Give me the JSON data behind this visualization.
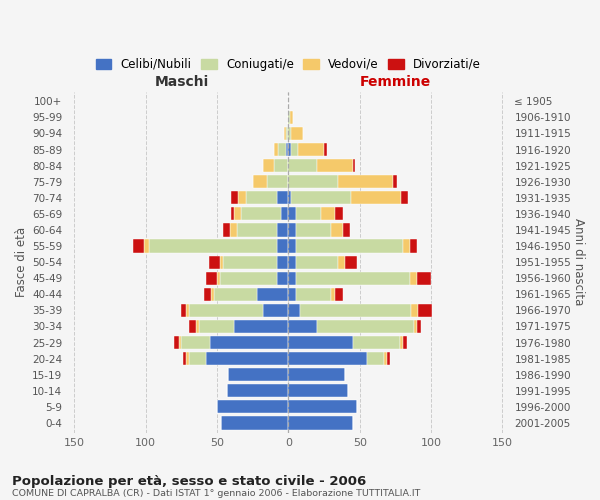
{
  "age_groups": [
    "0-4",
    "5-9",
    "10-14",
    "15-19",
    "20-24",
    "25-29",
    "30-34",
    "35-39",
    "40-44",
    "45-49",
    "50-54",
    "55-59",
    "60-64",
    "65-69",
    "70-74",
    "75-79",
    "80-84",
    "85-89",
    "90-94",
    "95-99",
    "100+"
  ],
  "birth_years": [
    "2001-2005",
    "1996-2000",
    "1991-1995",
    "1986-1990",
    "1981-1985",
    "1976-1980",
    "1971-1975",
    "1966-1970",
    "1961-1965",
    "1956-1960",
    "1951-1955",
    "1946-1950",
    "1941-1945",
    "1936-1940",
    "1931-1935",
    "1926-1930",
    "1921-1925",
    "1916-1920",
    "1911-1915",
    "1906-1910",
    "≤ 1905"
  ],
  "males_celibe": [
    47,
    50,
    43,
    42,
    58,
    55,
    38,
    18,
    22,
    8,
    8,
    8,
    8,
    5,
    8,
    0,
    0,
    2,
    0,
    0,
    0
  ],
  "males_coniugato": [
    0,
    0,
    0,
    0,
    12,
    20,
    25,
    52,
    30,
    40,
    38,
    90,
    28,
    28,
    22,
    15,
    10,
    5,
    2,
    0,
    0
  ],
  "males_vedovo": [
    0,
    0,
    0,
    0,
    2,
    2,
    2,
    2,
    2,
    2,
    2,
    3,
    5,
    5,
    5,
    10,
    8,
    3,
    1,
    0,
    0
  ],
  "males_divorziato": [
    0,
    0,
    0,
    0,
    2,
    3,
    5,
    3,
    5,
    8,
    8,
    8,
    5,
    2,
    5,
    0,
    0,
    0,
    0,
    0,
    0
  ],
  "females_nubile": [
    45,
    48,
    42,
    40,
    55,
    45,
    20,
    8,
    5,
    5,
    5,
    5,
    5,
    5,
    2,
    0,
    0,
    2,
    0,
    0,
    0
  ],
  "females_coniugata": [
    0,
    0,
    0,
    0,
    12,
    33,
    68,
    78,
    25,
    80,
    30,
    75,
    25,
    18,
    42,
    35,
    20,
    5,
    2,
    1,
    0
  ],
  "females_vedova": [
    0,
    0,
    0,
    0,
    2,
    2,
    2,
    5,
    3,
    5,
    5,
    5,
    8,
    10,
    35,
    38,
    25,
    18,
    8,
    2,
    0
  ],
  "females_divorziata": [
    0,
    0,
    0,
    0,
    2,
    3,
    3,
    10,
    5,
    10,
    8,
    5,
    5,
    5,
    5,
    3,
    2,
    2,
    0,
    0,
    0
  ],
  "colors": {
    "celibe": "#4472C4",
    "coniugato": "#c8daa2",
    "vedovo": "#f5c96a",
    "divorziato": "#CC1111"
  },
  "legend_labels": [
    "Celibi/Nubili",
    "Coniugati/e",
    "Vedovi/e",
    "Divorziati/e"
  ],
  "title": "Popolazione per età, sesso e stato civile - 2006",
  "subtitle": "COMUNE DI CAPRALBA (CR) - Dati ISTAT 1° gennaio 2006 - Elaborazione TUTTITALIA.IT",
  "ylabel_left": "Fasce di età",
  "ylabel_right": "Anni di nascita",
  "xlabel_left": "Maschi",
  "xlabel_right": "Femmine",
  "xlim": 155,
  "background_color": "#f5f5f5",
  "grid_color": "#cccccc"
}
